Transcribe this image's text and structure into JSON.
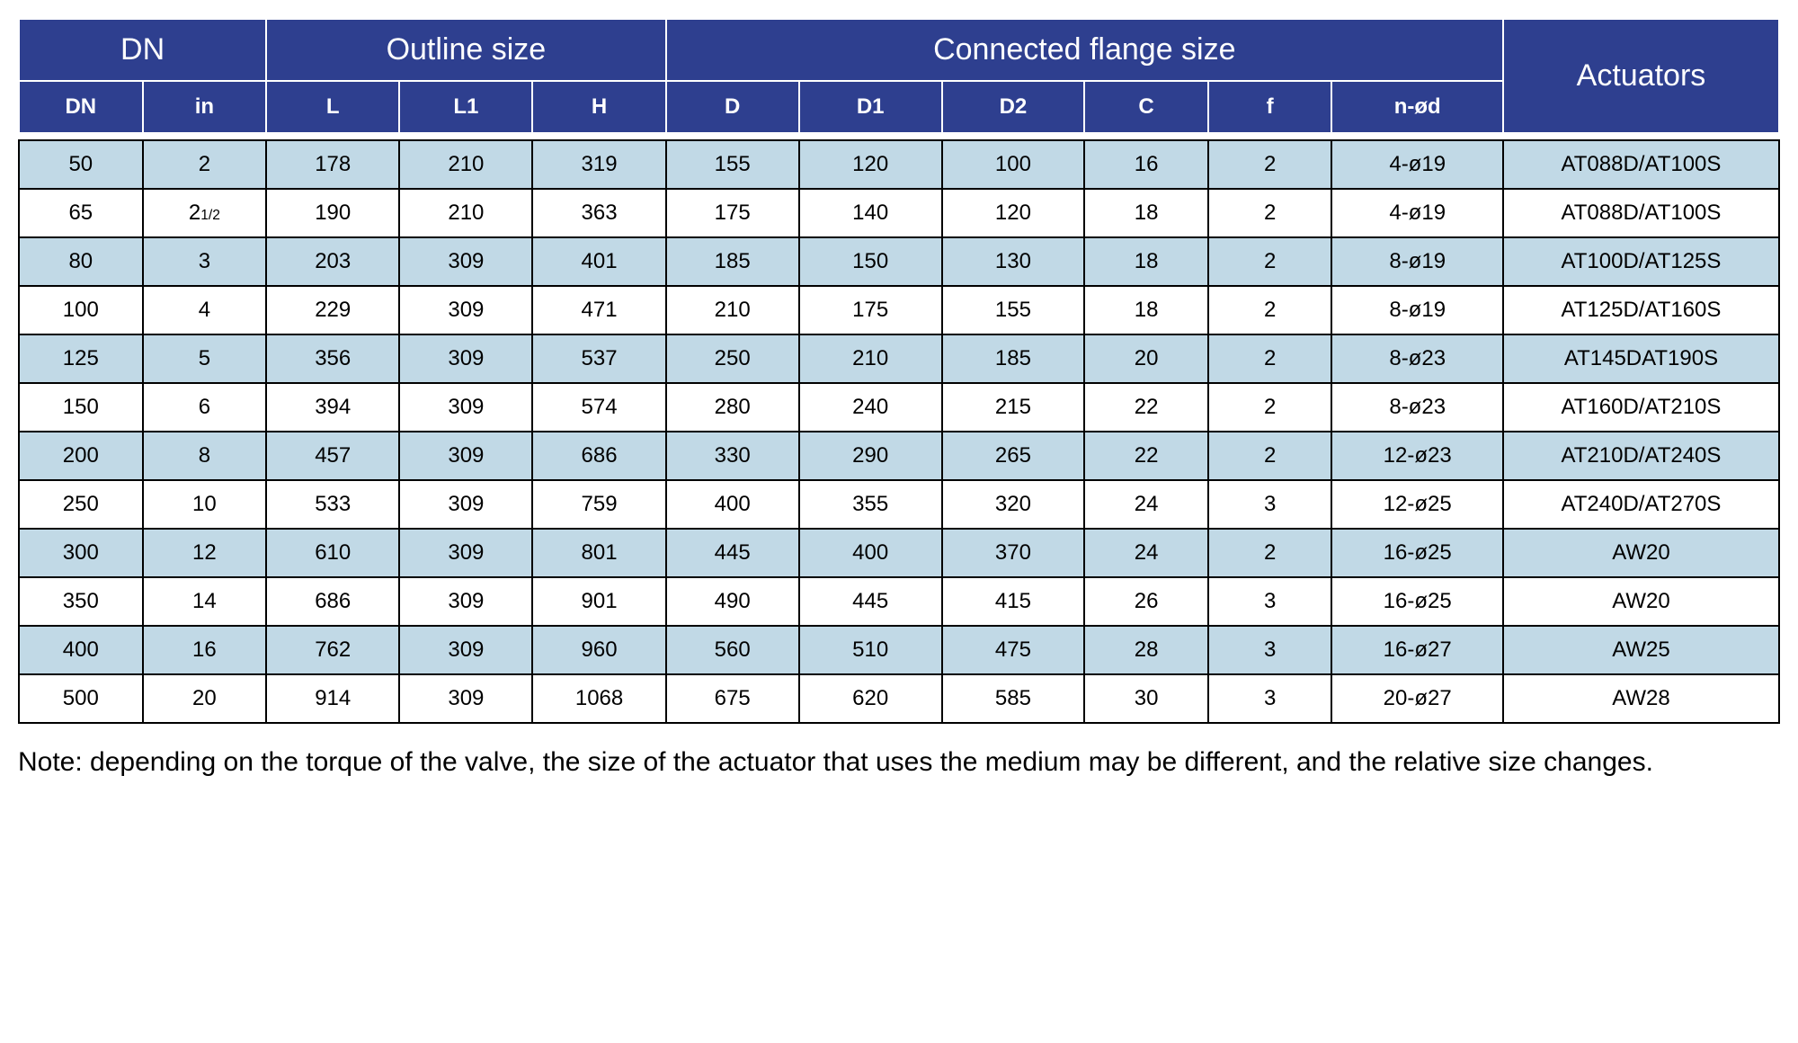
{
  "colors": {
    "header_bg": "#2e3f8f",
    "header_fg": "#ffffff",
    "row_shade": "#c1d9e6",
    "row_plain": "#ffffff",
    "border_header": "#ffffff",
    "border_body": "#000000",
    "text": "#000000"
  },
  "typography": {
    "group_header_fontsize": 34,
    "sub_header_fontsize": 24,
    "cell_fontsize": 24,
    "note_fontsize": 30
  },
  "header": {
    "groups": {
      "dn": "DN",
      "outline": "Outline size",
      "flange": "Connected flange size",
      "actuators": "Actuators"
    },
    "subs": {
      "dn": "DN",
      "in": "in",
      "l": "L",
      "l1": "L1",
      "h": "H",
      "d": "D",
      "d1": "D1",
      "d2": "D2",
      "c": "C",
      "f": "f",
      "nod": "n-ød"
    }
  },
  "rows": [
    {
      "dn": "50",
      "in": "2",
      "l": "178",
      "l1": "210",
      "h": "319",
      "d": "155",
      "d1": "120",
      "d2": "100",
      "c": "16",
      "f": "2",
      "nod": "4-ø19",
      "act": "AT088D/AT100S"
    },
    {
      "dn": "65",
      "in": "2 1/2",
      "l": "190",
      "l1": "210",
      "h": "363",
      "d": "175",
      "d1": "140",
      "d2": "120",
      "c": "18",
      "f": "2",
      "nod": "4-ø19",
      "act": "AT088D/AT100S"
    },
    {
      "dn": "80",
      "in": "3",
      "l": "203",
      "l1": "309",
      "h": "401",
      "d": "185",
      "d1": "150",
      "d2": "130",
      "c": "18",
      "f": "2",
      "nod": "8-ø19",
      "act": "AT100D/AT125S"
    },
    {
      "dn": "100",
      "in": "4",
      "l": "229",
      "l1": "309",
      "h": "471",
      "d": "210",
      "d1": "175",
      "d2": "155",
      "c": "18",
      "f": "2",
      "nod": "8-ø19",
      "act": "AT125D/AT160S"
    },
    {
      "dn": "125",
      "in": "5",
      "l": "356",
      "l1": "309",
      "h": "537",
      "d": "250",
      "d1": "210",
      "d2": "185",
      "c": "20",
      "f": "2",
      "nod": "8-ø23",
      "act": "AT145DAT190S"
    },
    {
      "dn": "150",
      "in": "6",
      "l": "394",
      "l1": "309",
      "h": "574",
      "d": "280",
      "d1": "240",
      "d2": "215",
      "c": "22",
      "f": "2",
      "nod": "8-ø23",
      "act": "AT160D/AT210S"
    },
    {
      "dn": "200",
      "in": "8",
      "l": "457",
      "l1": "309",
      "h": "686",
      "d": "330",
      "d1": "290",
      "d2": "265",
      "c": "22",
      "f": "2",
      "nod": "12-ø23",
      "act": "AT210D/AT240S"
    },
    {
      "dn": "250",
      "in": "10",
      "l": "533",
      "l1": "309",
      "h": "759",
      "d": "400",
      "d1": "355",
      "d2": "320",
      "c": "24",
      "f": "3",
      "nod": "12-ø25",
      "act": "AT240D/AT270S"
    },
    {
      "dn": "300",
      "in": "12",
      "l": "610",
      "l1": "309",
      "h": "801",
      "d": "445",
      "d1": "400",
      "d2": "370",
      "c": "24",
      "f": "2",
      "nod": "16-ø25",
      "act": "AW20"
    },
    {
      "dn": "350",
      "in": "14",
      "l": "686",
      "l1": "309",
      "h": "901",
      "d": "490",
      "d1": "445",
      "d2": "415",
      "c": "26",
      "f": "3",
      "nod": "16-ø25",
      "act": "AW20"
    },
    {
      "dn": "400",
      "in": "16",
      "l": "762",
      "l1": "309",
      "h": "960",
      "d": "560",
      "d1": "510",
      "d2": "475",
      "c": "28",
      "f": "3",
      "nod": "16-ø27",
      "act": "AW25"
    },
    {
      "dn": "500",
      "in": "20",
      "l": "914",
      "l1": "309",
      "h": "1068",
      "d": "675",
      "d1": "620",
      "d2": "585",
      "c": "30",
      "f": "3",
      "nod": "20-ø27",
      "act": "AW28"
    }
  ],
  "columns_order": [
    "dn",
    "in",
    "l",
    "l1",
    "h",
    "d",
    "d1",
    "d2",
    "c",
    "f",
    "nod",
    "act"
  ],
  "note": "Note: depending on the torque of the valve, the size of the actuator that uses the medium may be different, and the relative size changes."
}
